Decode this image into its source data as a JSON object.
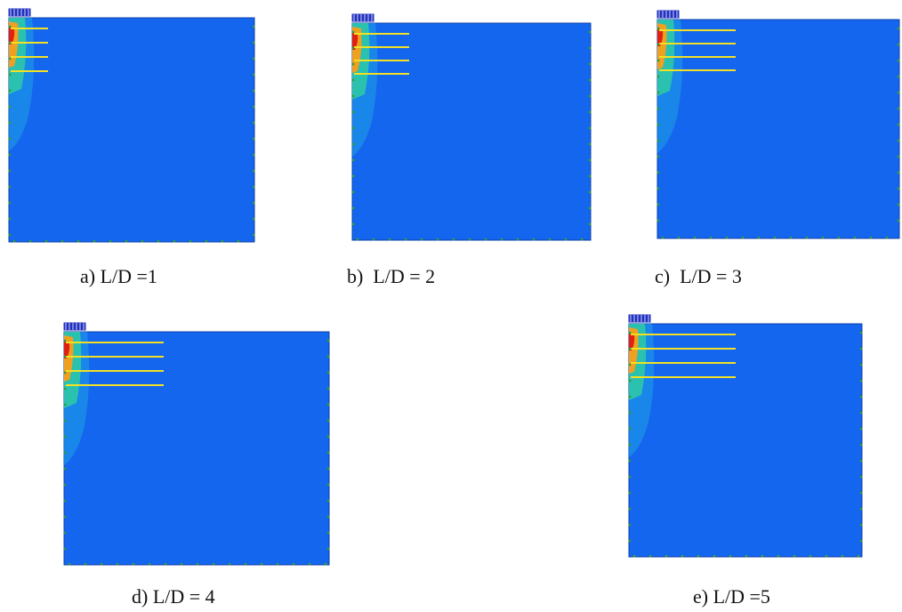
{
  "figure": {
    "colors": {
      "domain_fill": "#1566ee",
      "domain_edge": "#0d3fa8",
      "reinforcement": "#f2e024",
      "contour_hot": "#e02010",
      "contour_warm": "#f0a020",
      "contour_mid": "#30d0a0",
      "contour_cool": "#1ea0e6",
      "footing": "#2030c0",
      "node_marker": "#2e9a3a"
    },
    "panels": [
      {
        "id": "a",
        "caption": "a) L/D =1",
        "layers": 4
      },
      {
        "id": "b",
        "caption": "b)  L/D = 2",
        "layers": 4
      },
      {
        "id": "c",
        "caption": "c)  L/D = 3",
        "layers": 4
      },
      {
        "id": "d",
        "caption": "d) L/D = 4",
        "layers": 4
      },
      {
        "id": "e",
        "caption": "e) L/D =5",
        "layers": 4
      }
    ]
  }
}
